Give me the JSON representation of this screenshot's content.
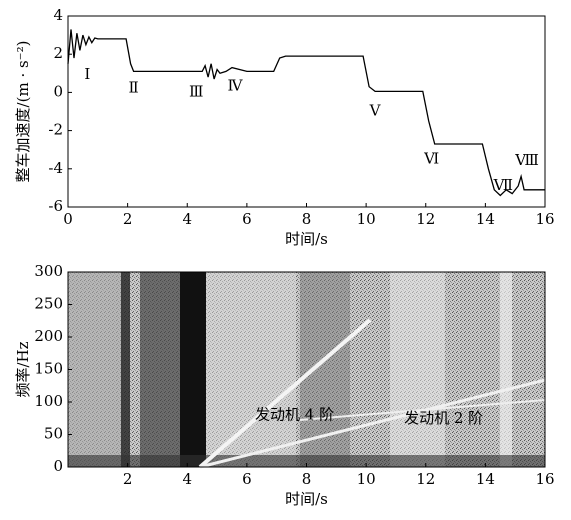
{
  "chart_data": [
    {
      "type": "line",
      "x_label": "时间/s",
      "y_label": "整车加速度/(m · s⁻²)",
      "x": [
        0,
        0.1,
        0.2,
        0.3,
        0.4,
        0.5,
        0.6,
        0.7,
        0.8,
        0.9,
        1.0,
        1.5,
        1.95,
        2.1,
        2.2,
        2.4,
        3,
        4.5,
        4.6,
        4.7,
        4.8,
        4.9,
        5.0,
        5.1,
        5.3,
        5.5,
        6,
        6.9,
        7.1,
        7.3,
        8,
        9.9,
        10.1,
        10.3,
        11,
        11.9,
        12.1,
        12.3,
        13,
        13.9,
        14.1,
        14.3,
        14.5,
        14.7,
        14.9,
        15.1,
        15.2,
        15.3,
        15.5,
        16
      ],
      "values": [
        1.5,
        3.3,
        1.8,
        3.1,
        2.2,
        3.0,
        2.5,
        2.9,
        2.6,
        2.85,
        2.8,
        2.8,
        2.8,
        1.5,
        1.1,
        1.1,
        1.1,
        1.1,
        1.4,
        0.8,
        1.5,
        0.7,
        1.2,
        1.0,
        1.1,
        1.3,
        1.1,
        1.1,
        1.8,
        1.9,
        1.9,
        1.9,
        0.3,
        0.05,
        0.05,
        0.05,
        -1.5,
        -2.7,
        -2.7,
        -2.7,
        -4.0,
        -5.1,
        -5.4,
        -5.1,
        -5.3,
        -4.9,
        -4.4,
        -5.1,
        -5.1,
        -5.1
      ],
      "color": "#000000",
      "xlim": [
        0,
        16
      ],
      "xticks": [
        0,
        2,
        4,
        6,
        8,
        10,
        12,
        14,
        16
      ],
      "ylim": [
        -6,
        4
      ],
      "yticks": [
        -6,
        -4,
        -2,
        0,
        2,
        4
      ],
      "annotations": [
        {
          "text": "Ⅰ",
          "x": 0.65,
          "y": 0.9
        },
        {
          "text": "Ⅱ",
          "x": 2.2,
          "y": 0.2
        },
        {
          "text": "Ⅲ",
          "x": 4.3,
          "y": 0.0
        },
        {
          "text": "Ⅳ",
          "x": 5.6,
          "y": 0.3
        },
        {
          "text": "Ⅴ",
          "x": 10.3,
          "y": -1.0
        },
        {
          "text": "Ⅵ",
          "x": 12.2,
          "y": -3.5
        },
        {
          "text": "Ⅶ",
          "x": 14.6,
          "y": -4.9
        },
        {
          "text": "Ⅷ",
          "x": 15.4,
          "y": -3.6
        }
      ]
    },
    {
      "type": "spectrogram",
      "x_label": "时间/s",
      "y_label": "频率/Hz",
      "xlim": [
        0,
        16
      ],
      "xticks": [
        2,
        4,
        6,
        8,
        10,
        12,
        14,
        16
      ],
      "ylim": [
        0,
        300
      ],
      "yticks": [
        0,
        50,
        100,
        150,
        200,
        250,
        300
      ],
      "annotations": [
        {
          "text": "发动机 4 阶",
          "x": 7.6,
          "y": 79
        },
        {
          "text": "发动机 2 阶",
          "x": 12.6,
          "y": 74
        }
      ]
    }
  ]
}
